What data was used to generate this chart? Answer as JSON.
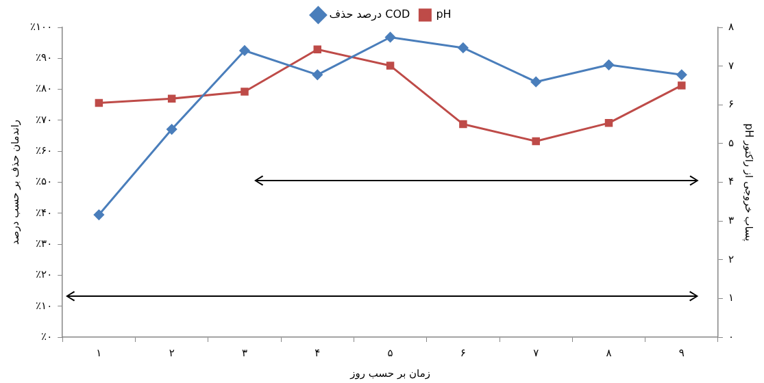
{
  "chart_data": {
    "type": "line",
    "xlabel": "زمان بر حسب روز",
    "ylabel": "راندمان حذف بر حسب درصد",
    "y2label": "pH پساب خروجی از راکتور",
    "categories": [
      "۱",
      "۲",
      "۳",
      "۴",
      "۵",
      "۶",
      "۷",
      "۸",
      "۹"
    ],
    "series": [
      {
        "name": "درصد حذف COD",
        "color": "#4a7ebb",
        "marker": "diamond",
        "values": [
          39.5,
          67.1,
          92.5,
          84.7,
          96.8,
          93.4,
          82.4,
          87.9,
          84.7
        ]
      },
      {
        "name": "pH",
        "color": "#be4b48",
        "marker": "square",
        "axis": "y2",
        "values": [
          6.05,
          6.16,
          6.34,
          7.43,
          7.01,
          5.5,
          5.06,
          5.53,
          6.5
        ]
      }
    ],
    "ylim": [
      0,
      100
    ],
    "yticks": [
      {
        "value": 0,
        "label": "٪۰"
      },
      {
        "value": 10,
        "label": "٪۱۰"
      },
      {
        "value": 20,
        "label": "٪۲۰"
      },
      {
        "value": 30,
        "label": "٪۳۰"
      },
      {
        "value": 40,
        "label": "٪۴۰"
      },
      {
        "value": 50,
        "label": "٪۵۰"
      },
      {
        "value": 60,
        "label": "٪۶۰"
      },
      {
        "value": 70,
        "label": "٪۷۰"
      },
      {
        "value": 80,
        "label": "٪۸۰"
      },
      {
        "value": 90,
        "label": "٪۹۰"
      },
      {
        "value": 100,
        "label": "٪۱۰۰"
      }
    ],
    "y2lim": [
      0,
      8
    ],
    "y2ticks": [
      {
        "value": 0,
        "label": "۰"
      },
      {
        "value": 1,
        "label": "۱"
      },
      {
        "value": 2,
        "label": "۲"
      },
      {
        "value": 3,
        "label": "۳"
      },
      {
        "value": 4,
        "label": "۴"
      },
      {
        "value": 5,
        "label": "۵"
      },
      {
        "value": 6,
        "label": "۶"
      },
      {
        "value": 7,
        "label": "۷"
      },
      {
        "value": 8,
        "label": "۸"
      }
    ],
    "grid": false,
    "legend": "top",
    "line_style": "solid"
  }
}
